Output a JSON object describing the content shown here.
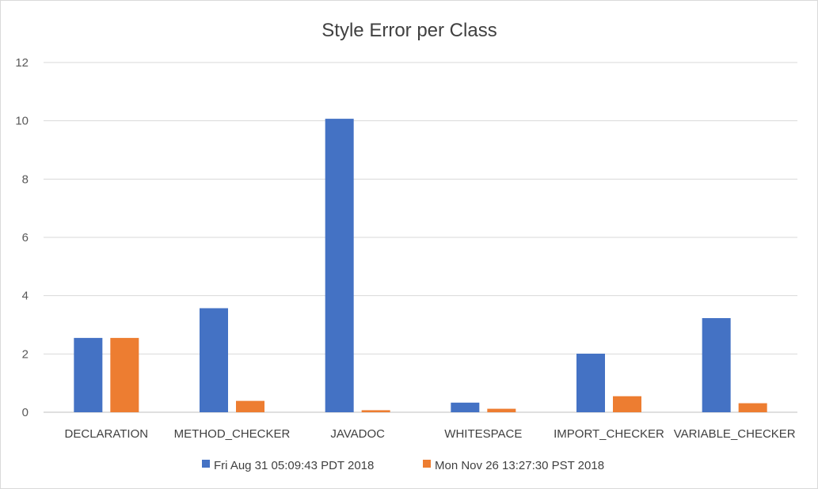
{
  "chart_data": {
    "type": "bar",
    "title": "Style Error per Class",
    "categories": [
      "DECLARATION",
      "METHOD_CHECKER",
      "JAVADOC",
      "WHITESPACE",
      "IMPORT_CHECKER",
      "VARIABLE_CHECKER"
    ],
    "series": [
      {
        "name": "Fri Aug 31 05:09:43 PDT 2018",
        "color": "#4472c4",
        "values": [
          2.55,
          3.57,
          10.07,
          0.33,
          2.01,
          3.23
        ]
      },
      {
        "name": "Mon Nov 26 13:27:30 PST 2018",
        "color": "#ed7d31",
        "values": [
          2.55,
          0.39,
          0.07,
          0.12,
          0.55,
          0.31
        ]
      }
    ],
    "yticks": [
      "0",
      "2",
      "4",
      "6",
      "8",
      "10",
      "12"
    ],
    "ylim": [
      0,
      12
    ],
    "grid": true,
    "legend_position": "bottom"
  }
}
